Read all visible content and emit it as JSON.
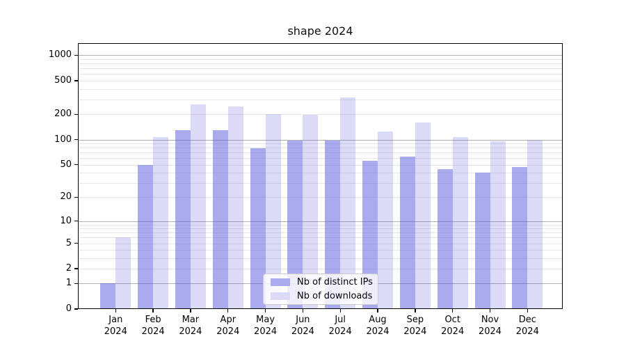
{
  "chart_data": {
    "type": "bar",
    "title": "shape 2024",
    "categories": [
      "Jan 2024",
      "Feb 2024",
      "Mar 2024",
      "Apr 2024",
      "May 2024",
      "Jun 2024",
      "Jul 2024",
      "Aug 2024",
      "Sep 2024",
      "Oct 2024",
      "Nov 2024",
      "Dec 2024"
    ],
    "months": [
      "Jan",
      "Feb",
      "Mar",
      "Apr",
      "May",
      "Jun",
      "Jul",
      "Aug",
      "Sep",
      "Oct",
      "Nov",
      "Dec"
    ],
    "year_label": "2024",
    "series": [
      {
        "name": "Nb of distinct IPs",
        "color": "#aaaaee",
        "fill": "rgba(85,85,221,0.5)",
        "values": [
          1,
          50,
          130,
          130,
          78,
          97,
          97,
          56,
          62,
          44,
          40,
          47
        ]
      },
      {
        "name": "Nb of downloads",
        "color": "#dbdbf8",
        "fill": "rgba(85,85,221,0.21)",
        "values": [
          6,
          107,
          260,
          246,
          200,
          196,
          320,
          125,
          160,
          107,
          95,
          100
        ]
      }
    ],
    "yscale": "log1p",
    "ylim": [
      0,
      1400
    ],
    "y_ticks": [
      0,
      1,
      2,
      5,
      10,
      20,
      50,
      100,
      200,
      500,
      1000
    ],
    "grid": {
      "major_values": [
        1,
        10,
        100,
        1000
      ],
      "minor_values": [
        2,
        3,
        4,
        5,
        6,
        7,
        8,
        9,
        20,
        30,
        40,
        50,
        60,
        70,
        80,
        90,
        200,
        300,
        400,
        500,
        600,
        700,
        800,
        900
      ],
      "major_color": "#b0b0b0",
      "minor_color": "#e7e7e7"
    },
    "legend_position": "lower center",
    "xlabel": "",
    "ylabel": ""
  }
}
